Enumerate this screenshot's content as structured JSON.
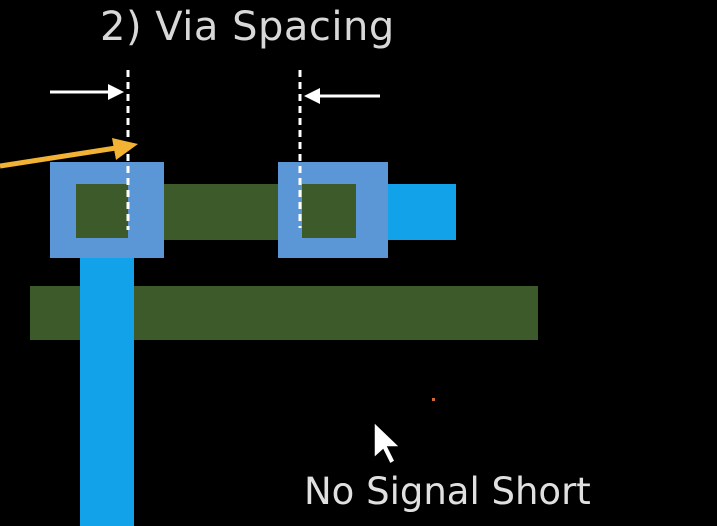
{
  "title": "2) Via Spacing",
  "caption": "No Signal Short",
  "colors": {
    "background": "#000000",
    "metal_green": "#3c5a2a",
    "metal_blue": "#11a2ea",
    "via_blue": "#5b97d6",
    "arrow_white": "#ffffff",
    "arrow_yellow": "#f2b233",
    "text": "#e0e0e0"
  },
  "icons": {
    "pointer": "mouse-pointer-icon"
  }
}
